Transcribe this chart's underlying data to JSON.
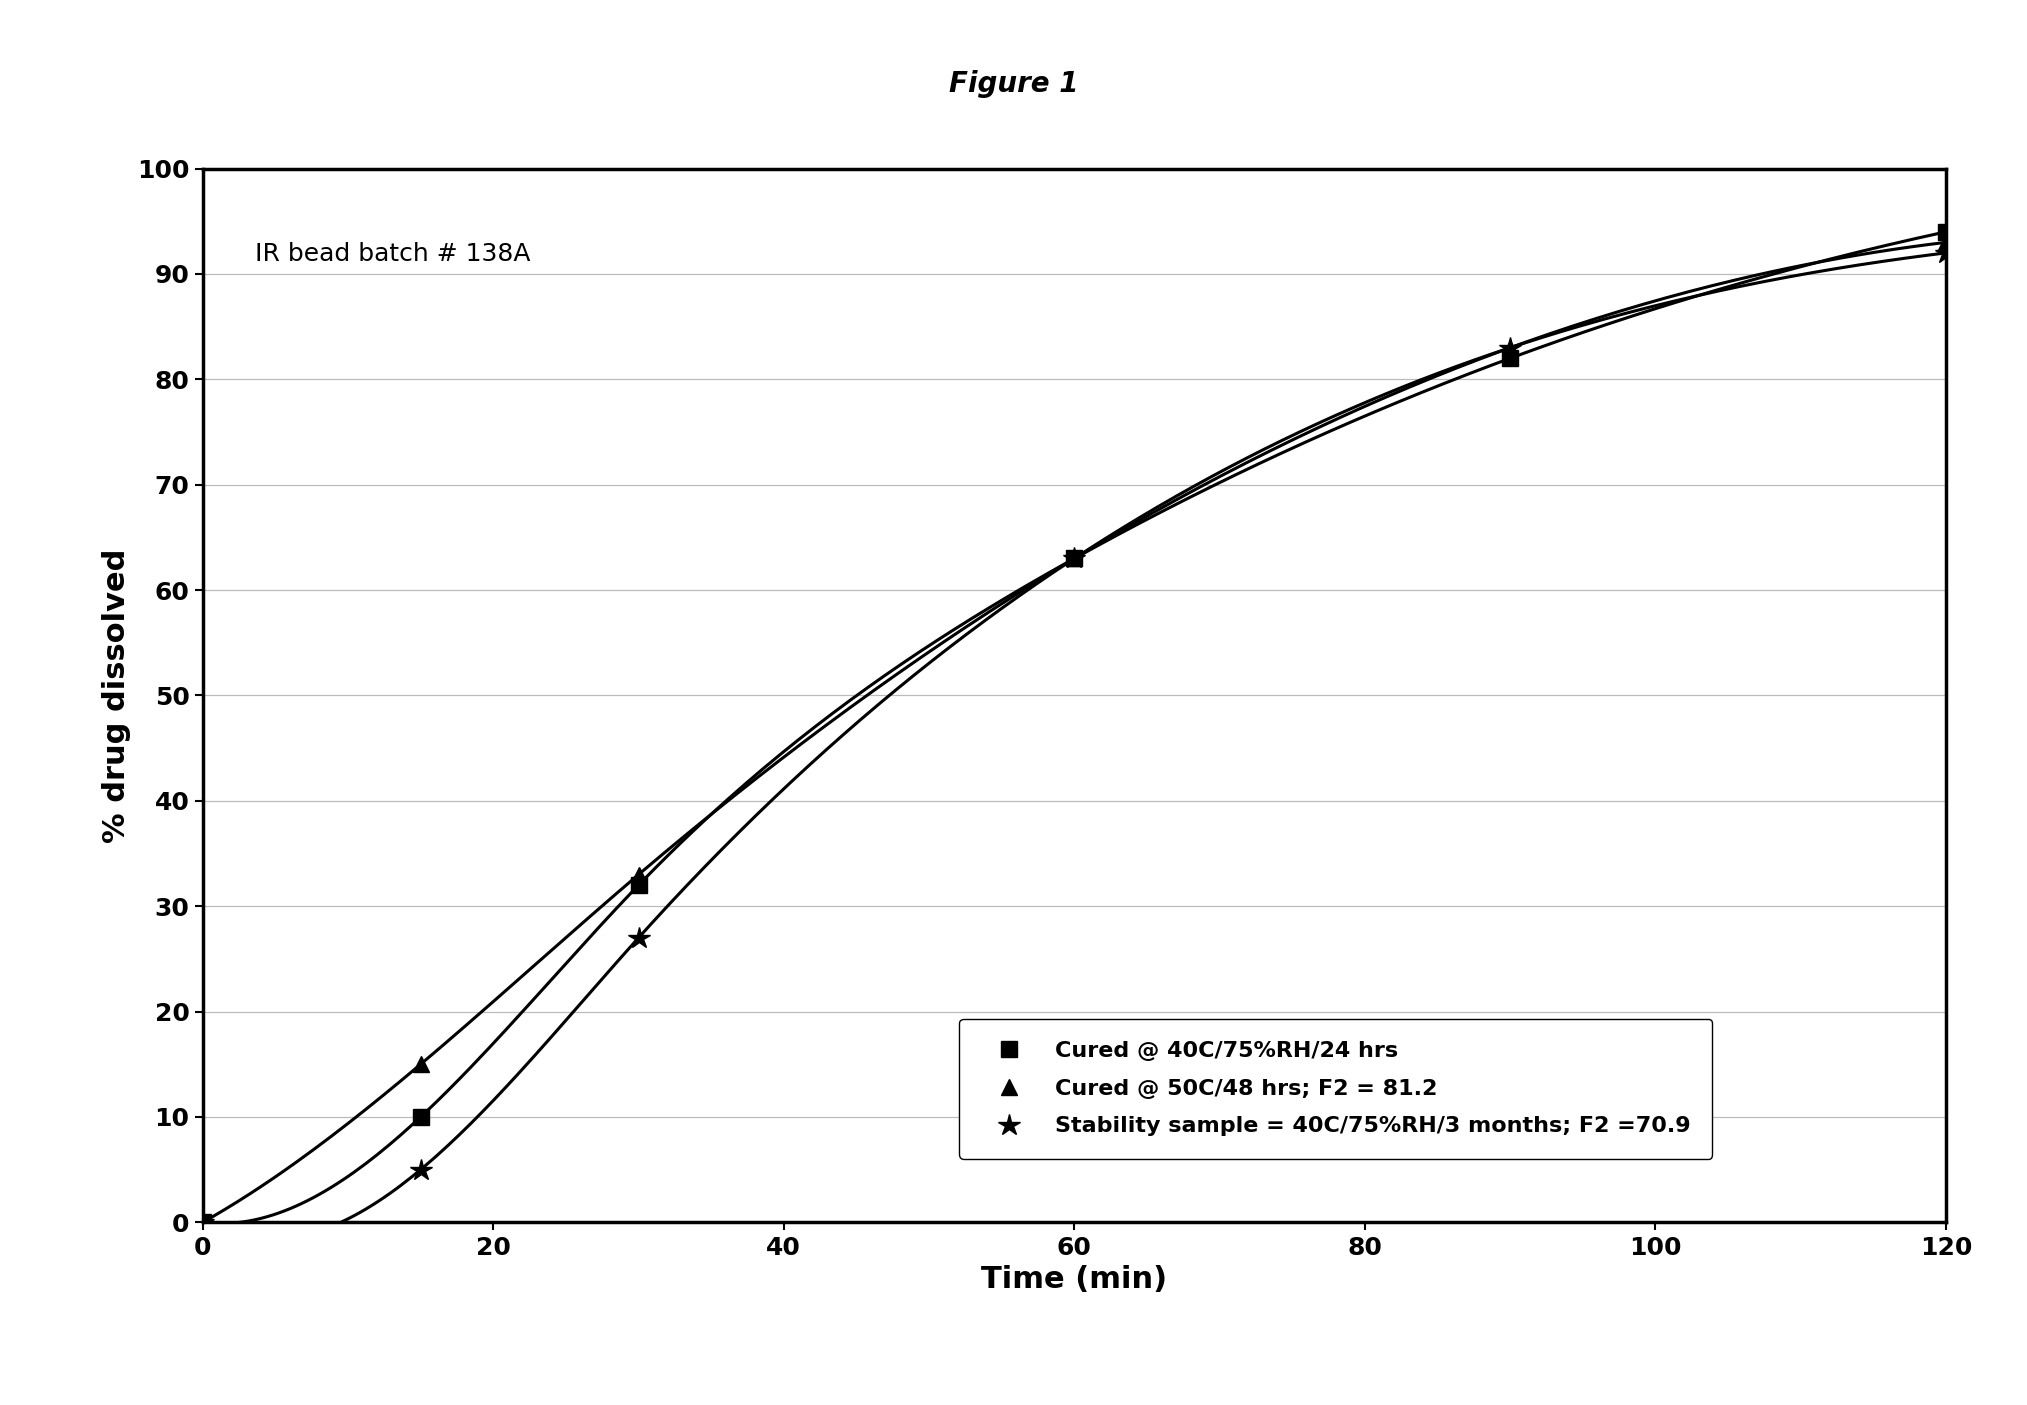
{
  "title": "Figure 1",
  "xlabel": "Time (min)",
  "ylabel": "% drug dissolved",
  "annotation": "IR bead batch # 138A",
  "xlim": [
    0,
    120
  ],
  "ylim": [
    0,
    100
  ],
  "xticks": [
    0,
    20,
    40,
    60,
    80,
    100,
    120
  ],
  "yticks": [
    0,
    10,
    20,
    30,
    40,
    50,
    60,
    70,
    80,
    90,
    100
  ],
  "series": [
    {
      "label": "Cured @ 40C/75%RH/24 hrs",
      "x": [
        0,
        15,
        30,
        60,
        90,
        120
      ],
      "y": [
        0,
        10,
        32,
        63,
        82,
        94
      ],
      "color": "#000000",
      "marker": "s",
      "markersize": 11,
      "linewidth": 2.2
    },
    {
      "label": "Cured @ 50C/48 hrs; F2 = 81.2",
      "x": [
        0,
        15,
        30,
        60,
        90,
        120
      ],
      "y": [
        0,
        15,
        33,
        63,
        83,
        93
      ],
      "color": "#000000",
      "marker": "^",
      "markersize": 11,
      "linewidth": 2.2
    },
    {
      "label": "Stability sample = 40C/75%RH/3 months; F2 =70.9",
      "x": [
        0,
        15,
        30,
        60,
        90,
        120
      ],
      "y": [
        0,
        5,
        27,
        63,
        83,
        92
      ],
      "color": "#000000",
      "marker": "*",
      "markersize": 16,
      "linewidth": 2.2
    }
  ],
  "background_color": "#ffffff",
  "title_fontsize": 20,
  "axis_label_fontsize": 22,
  "tick_fontsize": 18,
  "legend_fontsize": 16,
  "annotation_fontsize": 18
}
